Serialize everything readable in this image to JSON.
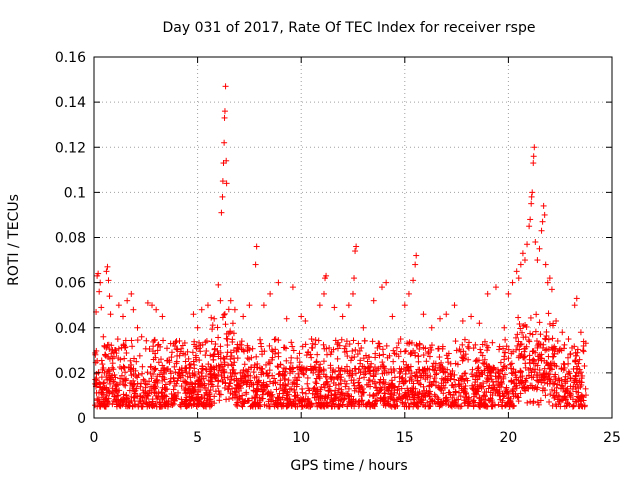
{
  "chart_data": {
    "type": "scatter",
    "title": "Day 031 of 2017, Rate Of TEC Index for receiver rspe",
    "xlabel": "GPS time / hours",
    "ylabel": "ROTI / TECUs",
    "xlim": [
      0,
      25
    ],
    "ylim": [
      0,
      0.16
    ],
    "x_ticks": [
      0,
      5,
      10,
      15,
      20,
      25
    ],
    "x_tick_labels": [
      "0",
      "5",
      "10",
      "15",
      "20",
      "25"
    ],
    "y_ticks": [
      0,
      0.02,
      0.04,
      0.06,
      0.08,
      0.1,
      0.12,
      0.14,
      0.16
    ],
    "y_tick_labels": [
      "0",
      "0.02",
      "0.04",
      "0.06",
      "0.08",
      "0.1",
      "0.12",
      "0.14",
      "0.16"
    ],
    "grid": true,
    "marker": "+",
    "marker_color": "#ff0000",
    "series": [
      {
        "name": "ROTI",
        "points": [
          [
            0.1,
            0.047
          ],
          [
            0.15,
            0.063
          ],
          [
            0.2,
            0.064
          ],
          [
            0.25,
            0.056
          ],
          [
            0.3,
            0.06
          ],
          [
            0.35,
            0.049
          ],
          [
            0.45,
            0.036
          ],
          [
            0.5,
            0.032
          ],
          [
            0.55,
            0.028
          ],
          [
            0.6,
            0.065
          ],
          [
            0.65,
            0.067
          ],
          [
            0.7,
            0.061
          ],
          [
            0.75,
            0.054
          ],
          [
            0.8,
            0.046
          ],
          [
            0.5,
            0.02
          ],
          [
            0.3,
            0.015
          ],
          [
            1.2,
            0.05
          ],
          [
            1.4,
            0.045
          ],
          [
            1.6,
            0.052
          ],
          [
            1.8,
            0.055
          ],
          [
            1.9,
            0.048
          ],
          [
            2.1,
            0.04
          ],
          [
            2.3,
            0.036
          ],
          [
            2.6,
            0.051
          ],
          [
            2.8,
            0.05
          ],
          [
            3.0,
            0.048
          ],
          [
            3.3,
            0.045
          ],
          [
            3.7,
            0.033
          ],
          [
            4.0,
            0.025
          ],
          [
            4.4,
            0.028
          ],
          [
            4.8,
            0.046
          ],
          [
            5.0,
            0.04
          ],
          [
            5.2,
            0.048
          ],
          [
            5.5,
            0.05
          ],
          [
            5.8,
            0.044
          ],
          [
            6.0,
            0.059
          ],
          [
            6.1,
            0.052
          ],
          [
            6.15,
            0.091
          ],
          [
            6.2,
            0.098
          ],
          [
            6.22,
            0.105
          ],
          [
            6.25,
            0.113
          ],
          [
            6.28,
            0.122
          ],
          [
            6.3,
            0.133
          ],
          [
            6.32,
            0.136
          ],
          [
            6.35,
            0.147
          ],
          [
            6.38,
            0.114
          ],
          [
            6.4,
            0.104
          ],
          [
            6.6,
            0.052
          ],
          [
            6.8,
            0.048
          ],
          [
            7.2,
            0.045
          ],
          [
            7.5,
            0.05
          ],
          [
            7.8,
            0.068
          ],
          [
            7.85,
            0.076
          ],
          [
            8.2,
            0.05
          ],
          [
            8.5,
            0.055
          ],
          [
            8.9,
            0.06
          ],
          [
            9.3,
            0.044
          ],
          [
            9.6,
            0.058
          ],
          [
            10.0,
            0.045
          ],
          [
            10.2,
            0.043
          ],
          [
            10.5,
            0.035
          ],
          [
            10.9,
            0.05
          ],
          [
            11.1,
            0.055
          ],
          [
            11.15,
            0.062
          ],
          [
            11.2,
            0.063
          ],
          [
            11.6,
            0.049
          ],
          [
            12.0,
            0.045
          ],
          [
            12.3,
            0.05
          ],
          [
            12.5,
            0.055
          ],
          [
            12.55,
            0.062
          ],
          [
            12.6,
            0.074
          ],
          [
            12.65,
            0.076
          ],
          [
            13.0,
            0.04
          ],
          [
            13.5,
            0.052
          ],
          [
            13.9,
            0.058
          ],
          [
            14.1,
            0.06
          ],
          [
            14.4,
            0.045
          ],
          [
            14.8,
            0.035
          ],
          [
            15.0,
            0.05
          ],
          [
            15.2,
            0.055
          ],
          [
            15.4,
            0.061
          ],
          [
            15.5,
            0.068
          ],
          [
            15.55,
            0.072
          ],
          [
            15.9,
            0.046
          ],
          [
            16.3,
            0.04
          ],
          [
            16.7,
            0.044
          ],
          [
            17.0,
            0.046
          ],
          [
            17.4,
            0.05
          ],
          [
            17.8,
            0.043
          ],
          [
            18.2,
            0.045
          ],
          [
            18.6,
            0.042
          ],
          [
            19.0,
            0.055
          ],
          [
            19.4,
            0.058
          ],
          [
            19.8,
            0.04
          ],
          [
            20.0,
            0.055
          ],
          [
            20.2,
            0.06
          ],
          [
            20.4,
            0.065
          ],
          [
            20.5,
            0.062
          ],
          [
            20.6,
            0.068
          ],
          [
            20.7,
            0.073
          ],
          [
            20.8,
            0.07
          ],
          [
            20.9,
            0.077
          ],
          [
            21.0,
            0.085
          ],
          [
            21.05,
            0.088
          ],
          [
            21.1,
            0.095
          ],
          [
            21.12,
            0.098
          ],
          [
            21.15,
            0.1
          ],
          [
            21.2,
            0.113
          ],
          [
            21.22,
            0.116
          ],
          [
            21.25,
            0.12
          ],
          [
            21.3,
            0.078
          ],
          [
            21.4,
            0.07
          ],
          [
            21.5,
            0.075
          ],
          [
            21.6,
            0.083
          ],
          [
            21.65,
            0.087
          ],
          [
            21.7,
            0.094
          ],
          [
            21.75,
            0.09
          ],
          [
            21.8,
            0.068
          ],
          [
            21.9,
            0.06
          ],
          [
            22.0,
            0.062
          ],
          [
            22.1,
            0.057
          ],
          [
            22.3,
            0.043
          ],
          [
            22.6,
            0.038
          ],
          [
            22.9,
            0.035
          ],
          [
            23.2,
            0.05
          ],
          [
            23.3,
            0.053
          ],
          [
            23.5,
            0.038
          ],
          [
            23.6,
            0.03
          ]
        ]
      }
    ],
    "dense_band": {
      "description": "dense cloud of points across the full time range",
      "typical_range": [
        0.005,
        0.035
      ]
    }
  }
}
